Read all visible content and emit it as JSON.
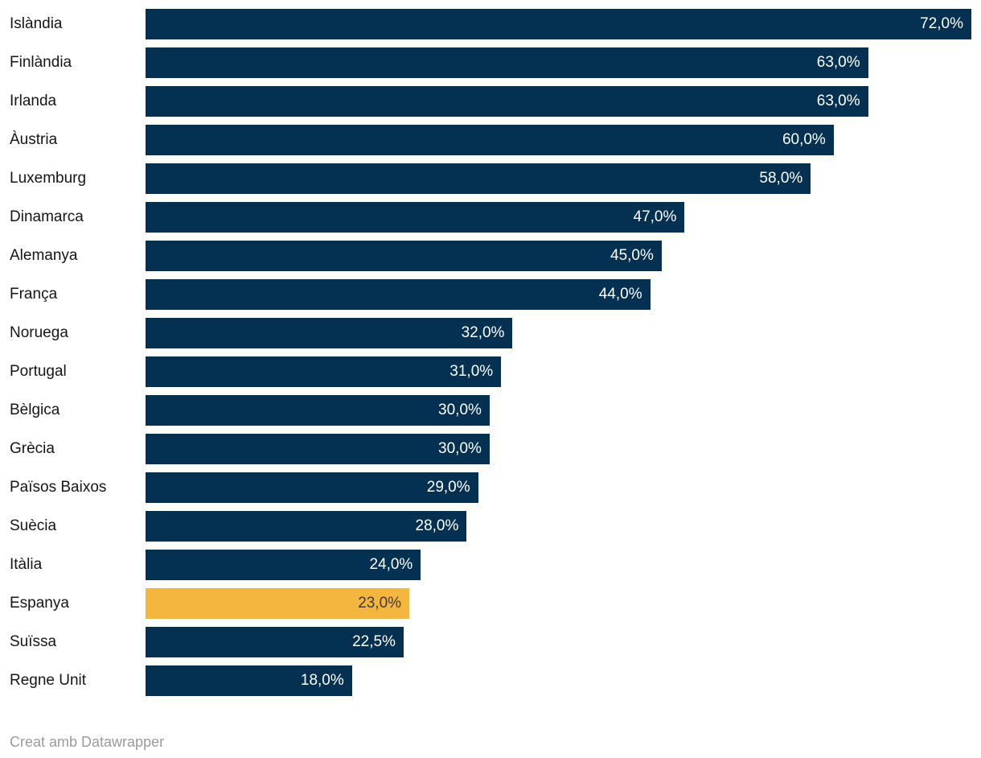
{
  "chart_data": {
    "type": "bar",
    "orientation": "horizontal",
    "title": "",
    "xlabel": "",
    "ylabel": "",
    "xlim": [
      0,
      72
    ],
    "grid": false,
    "legend": false,
    "categories": [
      "Islàndia",
      "Finlàndia",
      "Irlanda",
      "Àustria",
      "Luxemburg",
      "Dinamarca",
      "Alemanya",
      "França",
      "Noruega",
      "Portugal",
      "Bèlgica",
      "Grècia",
      "Països Baixos",
      "Suècia",
      "Itàlia",
      "Espanya",
      "Suïssa",
      "Regne Unit"
    ],
    "values": [
      72.0,
      63.0,
      63.0,
      60.0,
      58.0,
      47.0,
      45.0,
      44.0,
      32.0,
      31.0,
      30.0,
      30.0,
      29.0,
      28.0,
      24.0,
      23.0,
      22.5,
      18.0
    ],
    "value_labels": [
      "72,0%",
      "63,0%",
      "63,0%",
      "60,0%",
      "58,0%",
      "47,0%",
      "45,0%",
      "44,0%",
      "32,0%",
      "31,0%",
      "30,0%",
      "30,0%",
      "29,0%",
      "28,0%",
      "24,0%",
      "23,0%",
      "22,5%",
      "18,0%"
    ],
    "highlighted_category": "Espanya",
    "value_label_position": "inside-end"
  },
  "colors": {
    "bar": "#043152",
    "highlight": "#f4b63e",
    "category_text": "#161616",
    "value_text_on_bar": "#ffffff",
    "value_text_on_highlight": "#3d3d3d",
    "footer_text": "#9b9b9b",
    "background": "#ffffff"
  },
  "footer": {
    "attribution": "Creat amb Datawrapper"
  }
}
